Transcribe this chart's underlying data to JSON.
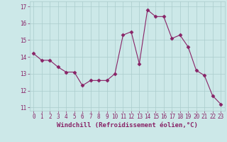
{
  "x": [
    0,
    1,
    2,
    3,
    4,
    5,
    6,
    7,
    8,
    9,
    10,
    11,
    12,
    13,
    14,
    15,
    16,
    17,
    18,
    19,
    20,
    21,
    22,
    23
  ],
  "y": [
    14.2,
    13.8,
    13.8,
    13.4,
    13.1,
    13.1,
    12.3,
    12.6,
    12.6,
    12.6,
    13.0,
    15.3,
    15.5,
    13.6,
    16.8,
    16.4,
    16.4,
    15.1,
    15.3,
    14.6,
    13.2,
    12.9,
    11.7,
    11.2
  ],
  "line_color": "#882266",
  "marker": "D",
  "marker_size": 2.5,
  "background_color": "#cce8e8",
  "grid_color": "#aacccc",
  "xlabel": "Windchill (Refroidissement éolien,°C)",
  "ylim": [
    10.8,
    17.3
  ],
  "xlim": [
    -0.5,
    23.5
  ],
  "yticks": [
    11,
    12,
    13,
    14,
    15,
    16,
    17
  ],
  "xticks": [
    0,
    1,
    2,
    3,
    4,
    5,
    6,
    7,
    8,
    9,
    10,
    11,
    12,
    13,
    14,
    15,
    16,
    17,
    18,
    19,
    20,
    21,
    22,
    23
  ],
  "tick_color": "#882266",
  "label_fontsize": 6.5,
  "tick_fontsize": 5.5
}
